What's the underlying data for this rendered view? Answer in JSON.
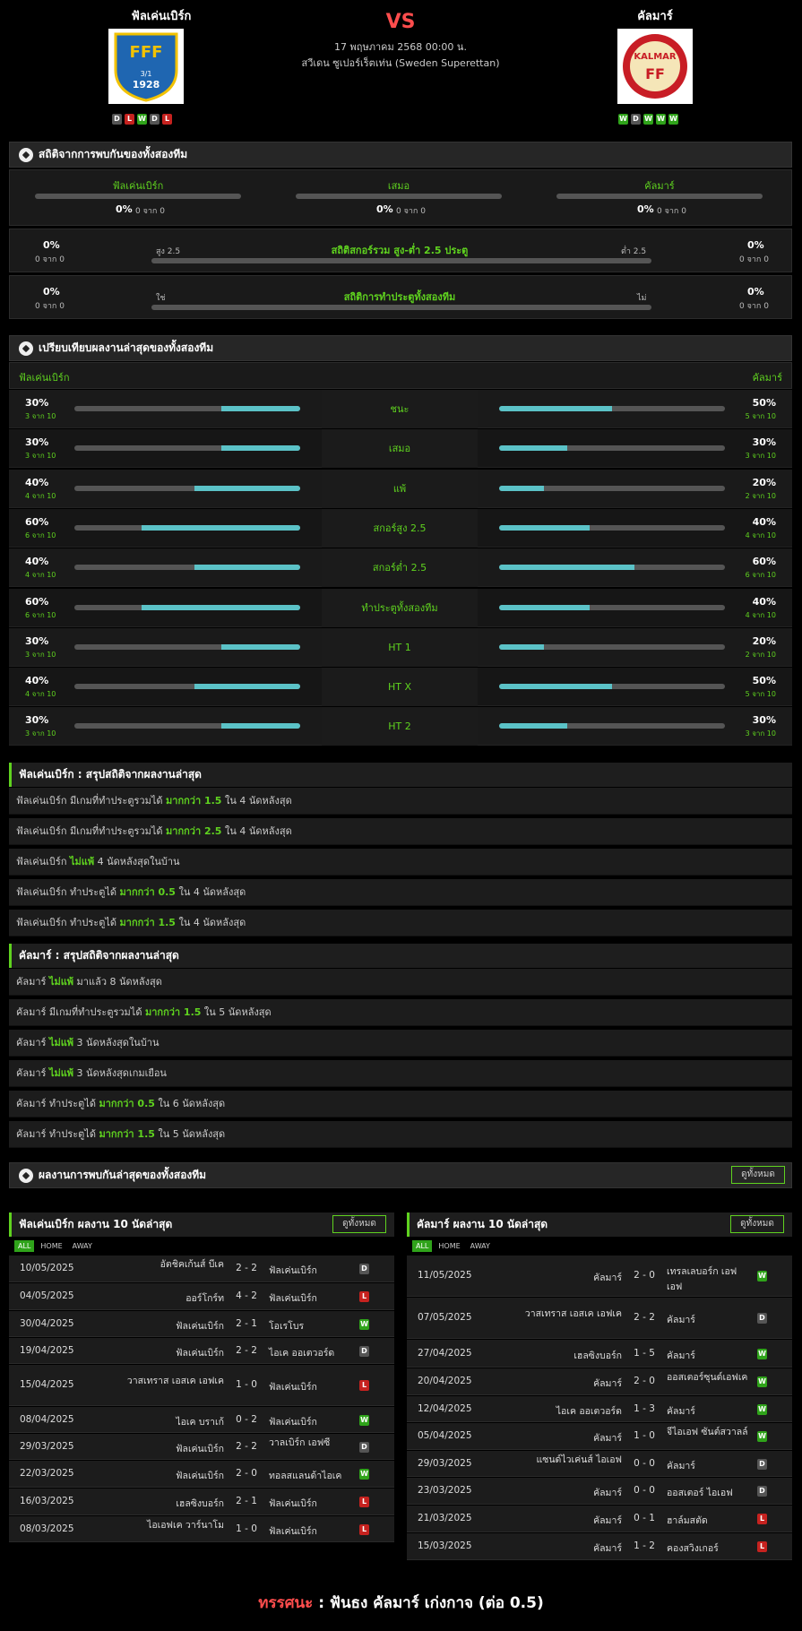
{
  "header": {
    "home": "ฟัลเค่นเบิร์ก",
    "away": "คัลมาร์",
    "vs": "VS",
    "date": "17 พฤษภาคม 2568 00:00 น.",
    "league": "สวีเดน ซูเปอร์เร็ตเท่น (Sweden Superettan)",
    "home_logo_text": "1928",
    "home_logo_small": "3/1",
    "away_logo_text": "KALMAR",
    "away_logo_ff": "FF",
    "home_form": [
      "D",
      "L",
      "W",
      "D",
      "L"
    ],
    "away_form": [
      "W",
      "D",
      "W",
      "W",
      "W"
    ]
  },
  "h2h": {
    "title": "สถิติจากการพบกันของทั้งสองทีม",
    "cols": [
      {
        "name": "ฟัลเค่นเบิร์ก",
        "pct": "0%",
        "sub": "0 จาก 0"
      },
      {
        "name": "เสมอ",
        "pct": "0%",
        "sub": "0 จาก 0"
      },
      {
        "name": "คัลมาร์",
        "pct": "0%",
        "sub": "0 จาก 0"
      }
    ],
    "ou": {
      "title": "สถิติสกอร์รวม สูง-ต่ำ 2.5 ประตู",
      "left": "สูง 2.5",
      "right": "ต่ำ 2.5",
      "lpct": "0%",
      "lsub": "0 จาก 0",
      "rpct": "0%",
      "rsub": "0 จาก 0"
    },
    "btts": {
      "title": "สถิติการทำประตูทั้งสองทีม",
      "left": "ใช่",
      "right": "ไม่",
      "lpct": "0%",
      "lsub": "0 จาก 0",
      "rpct": "0%",
      "rsub": "0 จาก 0"
    }
  },
  "compare": {
    "title": "เปรียบเทียบผลงานล่าสุดของทั้งสองทีม",
    "home": "ฟัลเค่นเบิร์ก",
    "away": "คัลมาร์",
    "rows": [
      {
        "label": "ชนะ",
        "hp": "30%",
        "hs": "3 จาก 10",
        "hv": 0.3,
        "ap": "50%",
        "as": "5 จาก 10",
        "av": 0.5
      },
      {
        "label": "เสมอ",
        "hp": "30%",
        "hs": "3 จาก 10",
        "hv": 0.3,
        "ap": "30%",
        "as": "3 จาก 10",
        "av": 0.3
      },
      {
        "label": "แพ้",
        "hp": "40%",
        "hs": "4 จาก 10",
        "hv": 0.4,
        "ap": "20%",
        "as": "2 จาก 10",
        "av": 0.2
      },
      {
        "label": "สกอร์สูง 2.5",
        "hp": "60%",
        "hs": "6 จาก 10",
        "hv": 0.6,
        "ap": "40%",
        "as": "4 จาก 10",
        "av": 0.4
      },
      {
        "label": "สกอร์ต่ำ 2.5",
        "hp": "40%",
        "hs": "4 จาก 10",
        "hv": 0.4,
        "ap": "60%",
        "as": "6 จาก 10",
        "av": 0.6
      },
      {
        "label": "ทำประตูทั้งสองทีม",
        "hp": "60%",
        "hs": "6 จาก 10",
        "hv": 0.6,
        "ap": "40%",
        "as": "4 จาก 10",
        "av": 0.4
      },
      {
        "label": "HT 1",
        "hp": "30%",
        "hs": "3 จาก 10",
        "hv": 0.3,
        "ap": "20%",
        "as": "2 จาก 10",
        "av": 0.2
      },
      {
        "label": "HT X",
        "hp": "40%",
        "hs": "4 จาก 10",
        "hv": 0.4,
        "ap": "50%",
        "as": "5 จาก 10",
        "av": 0.5
      },
      {
        "label": "HT 2",
        "hp": "30%",
        "hs": "3 จาก 10",
        "hv": 0.3,
        "ap": "30%",
        "as": "3 จาก 10",
        "av": 0.3
      }
    ]
  },
  "home_summary": {
    "title": "ฟัลเค่นเบิร์ก : สรุปสถิติจากผลงานล่าสุด",
    "rows": [
      [
        "ฟัลเค่นเบิร์ก  มีเกมที่ทำประตูรวมได้ ",
        "มากกว่า  1.5",
        " ใน 4 นัดหลังสุด"
      ],
      [
        "ฟัลเค่นเบิร์ก  มีเกมที่ทำประตูรวมได้ ",
        "มากกว่า  2.5",
        " ใน 4 นัดหลังสุด"
      ],
      [
        "ฟัลเค่นเบิร์ก ",
        "ไม่แพ้",
        " 4  นัดหลังสุดในบ้าน"
      ],
      [
        "ฟัลเค่นเบิร์ก  ทำประตูได้ ",
        "มากกว่า  0.5",
        " ใน 4 นัดหลังสุด"
      ],
      [
        "ฟัลเค่นเบิร์ก  ทำประตูได้ ",
        "มากกว่า  1.5",
        " ใน 4 นัดหลังสุด"
      ]
    ]
  },
  "away_summary": {
    "title": "คัลมาร์ : สรุปสถิติจากผลงานล่าสุด",
    "rows": [
      [
        "คัลมาร์ ",
        "ไม่แพ้",
        " มาแล้ว 8 นัดหลังสุด"
      ],
      [
        "คัลมาร์  มีเกมที่ทำประตูรวมได้ ",
        "มากกว่า  1.5",
        " ใน 5 นัดหลังสุด"
      ],
      [
        "คัลมาร์ ",
        "ไม่แพ้",
        " 3  นัดหลังสุดในบ้าน"
      ],
      [
        "คัลมาร์ ",
        "ไม่แพ้",
        " 3  นัดหลังสุดเกมเยือน"
      ],
      [
        "คัลมาร์  ทำประตูได้ ",
        "มากกว่า  0.5",
        " ใน 6 นัดหลังสุด"
      ],
      [
        "คัลมาร์  ทำประตูได้ ",
        "มากกว่า  1.5",
        " ใน 5 นัดหลังสุด"
      ]
    ]
  },
  "recent_h2h": {
    "title": "ผลงานการพบกันล่าสุดของทั้งสองทีม",
    "view_all": "ดูทั้งหมด"
  },
  "tabs": [
    "ALL",
    "HOME",
    "AWAY"
  ],
  "home_last10": {
    "title": "ฟัลเค่นเบิร์ก ผลงาน 10 นัดล่าสุด",
    "view_all": "ดูทั้งหมด",
    "rows": [
      {
        "d": "10/05/2025",
        "h": "อัตชิคเก้นส์ บีเค",
        "s": "2 - 2",
        "a": "ฟัลเค่นเบิร์ก",
        "r": "D"
      },
      {
        "d": "04/05/2025",
        "h": "ออร์โกร์ท",
        "s": "4 - 2",
        "a": "ฟัลเค่นเบิร์ก",
        "r": "L"
      },
      {
        "d": "30/04/2025",
        "h": "ฟัลเค่นเบิร์ก",
        "s": "2 - 1",
        "a": "โอเรโบร",
        "r": "W"
      },
      {
        "d": "19/04/2025",
        "h": "ฟัลเค่นเบิร์ก",
        "s": "2 - 2",
        "a": "ไอเค ออเตวอร์ด",
        "r": "D"
      },
      {
        "d": "15/04/2025",
        "h": "วาสเทราส เอสเค เอฟเค",
        "s": "1 - 0",
        "a": "ฟัลเค่นเบิร์ก",
        "r": "L"
      },
      {
        "d": "08/04/2025",
        "h": "ไอเค บราเก้",
        "s": "0 - 2",
        "a": "ฟัลเค่นเบิร์ก",
        "r": "W"
      },
      {
        "d": "29/03/2025",
        "h": "ฟัลเค่นเบิร์ก",
        "s": "2 - 2",
        "a": "วาลเบิร์ก เอฟซี",
        "r": "D"
      },
      {
        "d": "22/03/2025",
        "h": "ฟัลเค่นเบิร์ก",
        "s": "2 - 0",
        "a": "ทอลสแลนด้าไอเค",
        "r": "W"
      },
      {
        "d": "16/03/2025",
        "h": "เฮลซิงบอร์ก",
        "s": "2 - 1",
        "a": "ฟัลเค่นเบิร์ก",
        "r": "L"
      },
      {
        "d": "08/03/2025",
        "h": "ไอเอฟเค วาร์นาโม",
        "s": "1 - 0",
        "a": "ฟัลเค่นเบิร์ก",
        "r": "L"
      }
    ]
  },
  "away_last10": {
    "title": "คัลมาร์ ผลงาน 10 นัดล่าสุด",
    "view_all": "ดูทั้งหมด",
    "rows": [
      {
        "d": "11/05/2025",
        "h": "คัลมาร์",
        "s": "2 - 0",
        "a": "เทรลเลบอร์ก เอฟ เอฟ",
        "r": "W"
      },
      {
        "d": "07/05/2025",
        "h": "วาสเทราส เอสเค เอฟเค",
        "s": "2 - 2",
        "a": "คัลมาร์",
        "r": "D"
      },
      {
        "d": "27/04/2025",
        "h": "เฮลซิงบอร์ก",
        "s": "1 - 5",
        "a": "คัลมาร์",
        "r": "W"
      },
      {
        "d": "20/04/2025",
        "h": "คัลมาร์",
        "s": "2 - 0",
        "a": "ออสเตอร์ซุนด์เอฟเค",
        "r": "W"
      },
      {
        "d": "12/04/2025",
        "h": "ไอเค ออเตวอร์ด",
        "s": "1 - 3",
        "a": "คัลมาร์",
        "r": "W"
      },
      {
        "d": "05/04/2025",
        "h": "คัลมาร์",
        "s": "1 - 0",
        "a": "จีไอเอฟ ซันต์สวาลล์",
        "r": "W"
      },
      {
        "d": "29/03/2025",
        "h": "แซนด์ไวเค่นส์ ไอเอฟ",
        "s": "0 - 0",
        "a": "คัลมาร์",
        "r": "D"
      },
      {
        "d": "23/03/2025",
        "h": "คัลมาร์",
        "s": "0 - 0",
        "a": "ออสเตอร์ ไอเอฟ",
        "r": "D"
      },
      {
        "d": "21/03/2025",
        "h": "คัลมาร์",
        "s": "0 - 1",
        "a": "ฮาล์มสตัด",
        "r": "L"
      },
      {
        "d": "15/03/2025",
        "h": "คัลมาร์",
        "s": "1 - 2",
        "a": "คองสวิงเกอร์",
        "r": "L"
      }
    ]
  },
  "prediction": {
    "label": "ทรรศนะ",
    "sep": " : ",
    "text": "ฟันธง คัลมาร์ เก่งกาจ (ต่อ 0.5)"
  }
}
